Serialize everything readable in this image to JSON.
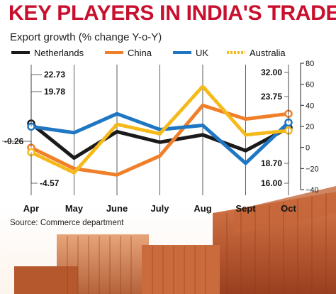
{
  "header": {
    "title": "KEY PLAYERS IN INDIA'S TRADE",
    "subtitle": "Export growth (% change Y-o-Y)"
  },
  "footer": {
    "source": "Source: Commerce department"
  },
  "chart_data": {
    "type": "line",
    "title": "KEY PLAYERS IN INDIA'S TRADE",
    "ylabel": "Export growth (% change Y-o-Y)",
    "xlabel": "",
    "categories": [
      "Apr",
      "May",
      "June",
      "July",
      "Aug",
      "Sept",
      "Oct"
    ],
    "ylim": [
      -40,
      80
    ],
    "yticks": [
      -40,
      -20,
      0,
      20,
      40,
      60,
      80
    ],
    "grid": false,
    "legend_position": "top",
    "series": [
      {
        "name": "Netherlands",
        "color": "#1a1a1a",
        "values": [
          22.73,
          -10,
          15,
          5,
          12,
          -3,
          18.7
        ]
      },
      {
        "name": "China",
        "color": "#f07f2a",
        "values": [
          -0.26,
          -20,
          -26,
          -8,
          40,
          27,
          32.0
        ]
      },
      {
        "name": "UK",
        "color": "#1f77c4",
        "values": [
          19.78,
          14,
          32,
          17,
          21,
          -15,
          23.75
        ]
      },
      {
        "name": "Australia",
        "color": "#f5b91a",
        "values": [
          -4.57,
          -24,
          22,
          13,
          58,
          12,
          16.0
        ]
      }
    ],
    "data_labels": [
      {
        "text": "22.73",
        "series": "Netherlands",
        "category": "Apr"
      },
      {
        "text": "19.78",
        "series": "UK",
        "category": "Apr"
      },
      {
        "text": "-0.26",
        "series": "China",
        "category": "Apr"
      },
      {
        "text": "-4.57",
        "series": "Australia",
        "category": "Apr"
      },
      {
        "text": "32.00",
        "series": "China",
        "category": "Oct"
      },
      {
        "text": "23.75",
        "series": "UK",
        "category": "Oct"
      },
      {
        "text": "18.70",
        "series": "Netherlands",
        "category": "Oct"
      },
      {
        "text": "16.00",
        "series": "Australia",
        "category": "Oct"
      }
    ]
  }
}
